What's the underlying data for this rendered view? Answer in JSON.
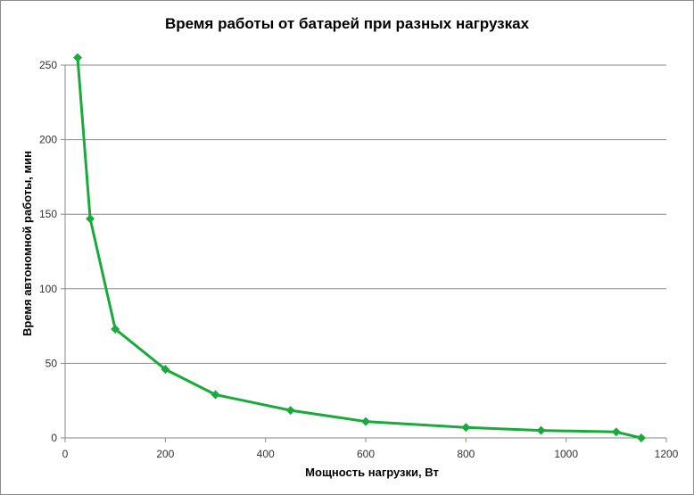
{
  "chart_data": {
    "type": "line",
    "title": "Время работы от батарей при разных нагрузках",
    "xlabel": "Мощность нагрузки, Вт",
    "ylabel": "Время автономной работы, мин",
    "xlim": [
      0,
      1200
    ],
    "ylim": [
      0,
      250
    ],
    "xticks": [
      0,
      200,
      400,
      600,
      800,
      1000,
      1200
    ],
    "yticks": [
      0,
      50,
      100,
      150,
      200,
      250
    ],
    "grid": "horizontal",
    "legend": "none",
    "color": "#1aaa3c",
    "series": [
      {
        "x": [
          25,
          50,
          100,
          200,
          300,
          450,
          600,
          800,
          950,
          1100,
          1150
        ],
        "y": [
          255,
          147,
          73,
          46,
          29,
          18.5,
          11,
          7,
          5,
          4,
          0
        ]
      }
    ]
  }
}
